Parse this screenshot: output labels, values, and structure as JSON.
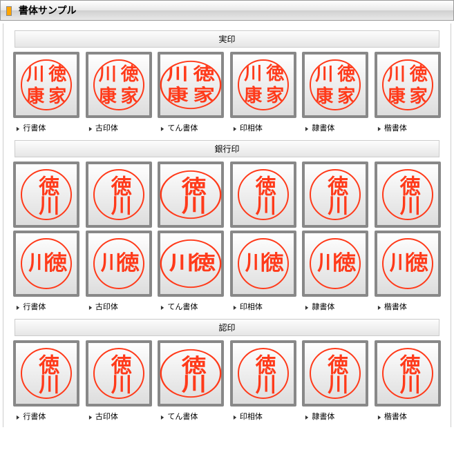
{
  "header": {
    "title": "書体サンプル"
  },
  "fontStyles": [
    {
      "id": "gyosho",
      "label": "行書体"
    },
    {
      "id": "koin",
      "label": "古印体"
    },
    {
      "id": "ten",
      "label": "てん書体"
    },
    {
      "id": "inso",
      "label": "印相体"
    },
    {
      "id": "reisho",
      "label": "隷書体"
    },
    {
      "id": "kaisho",
      "label": "楷書体"
    }
  ],
  "sections": {
    "jitsuin": {
      "title": "実印",
      "chars": [
        "徳",
        "川",
        "家",
        "康"
      ],
      "layout": "grid2x2"
    },
    "ginkouin": {
      "title": "銀行印",
      "rows": [
        {
          "chars": [
            "徳",
            "川"
          ],
          "layout": "vertical"
        },
        {
          "chars": [
            "徳",
            "川"
          ],
          "layout": "horizontal-rtl"
        }
      ]
    },
    "mitomein": {
      "title": "認印",
      "chars": [
        "徳",
        "川"
      ],
      "layout": "vertical"
    }
  },
  "colors": {
    "sealStroke": "#ff3a1a",
    "boxBorder": "#888888",
    "boxGradientTop": "#ffffff",
    "boxGradientBottom": "#dddddd",
    "sectionBorder": "#cccccc"
  }
}
